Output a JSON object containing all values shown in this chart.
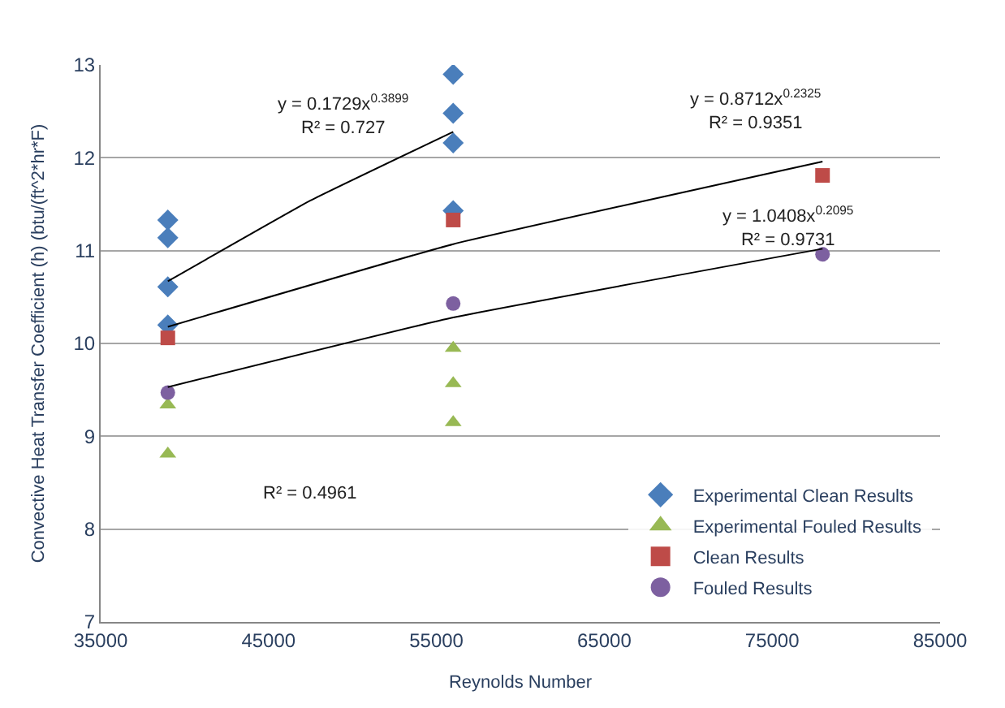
{
  "chart_data": {
    "type": "scatter",
    "xlabel": "Reynolds Number",
    "ylabel": "Convective Heat Transfer Coefficient (h) (btu/(ft^2*hr*F)",
    "xlim": [
      35000,
      85000
    ],
    "xticks": [
      35000,
      45000,
      55000,
      65000,
      75000,
      85000
    ],
    "ylim": [
      7,
      13
    ],
    "yticks": [
      7,
      8,
      9,
      10,
      11,
      12,
      13
    ],
    "grid": "y",
    "legend": "bottom right",
    "series": [
      {
        "name": "Experimental Clean Results",
        "color": "#4a7ebb",
        "marker": "diamond",
        "x": [
          39000,
          39000,
          39000,
          39000,
          56000,
          56000,
          56000,
          56000
        ],
        "values": [
          11.33,
          11.14,
          10.61,
          10.2,
          12.9,
          12.48,
          12.16,
          11.43
        ]
      },
      {
        "name": "Experimental Fouled Results",
        "color": "#98b954",
        "marker": "triangle",
        "x": [
          39000,
          39000,
          56000,
          56000,
          56000
        ],
        "values": [
          9.34,
          8.81,
          9.95,
          9.57,
          9.15
        ]
      },
      {
        "name": "Clean Results",
        "color": "#be4b48",
        "marker": "square",
        "x": [
          39000,
          56000,
          78000
        ],
        "values": [
          10.06,
          11.33,
          11.81
        ]
      },
      {
        "name": "Fouled Results",
        "color": "#7d60a0",
        "marker": "circle",
        "x": [
          39000,
          56000,
          78000
        ],
        "values": [
          9.47,
          10.43,
          10.96
        ]
      },
      {
        "type": "line",
        "color": "#000000",
        "marker": "none",
        "x": [
          39000,
          47500,
          56000
        ],
        "values": [
          10.67,
          11.54,
          12.28
        ]
      },
      {
        "type": "line",
        "color": "#000000",
        "marker": "none",
        "x": [
          39000,
          56000,
          78000
        ],
        "values": [
          10.18,
          11.07,
          11.96
        ]
      },
      {
        "type": "line",
        "color": "#000000",
        "marker": "none",
        "x": [
          39000,
          56000,
          78000
        ],
        "values": [
          9.53,
          10.28,
          11.02
        ]
      }
    ],
    "annotations": [
      "y = 0.1729x$^{0.3899}$\nR² = 0.727",
      "y = 0.8712x$^{0.2325}$\nR² = 0.9351",
      "y = 1.0408x$^{0.2095}$\nR² = 0.9731",
      "R² = 0.4961"
    ]
  }
}
